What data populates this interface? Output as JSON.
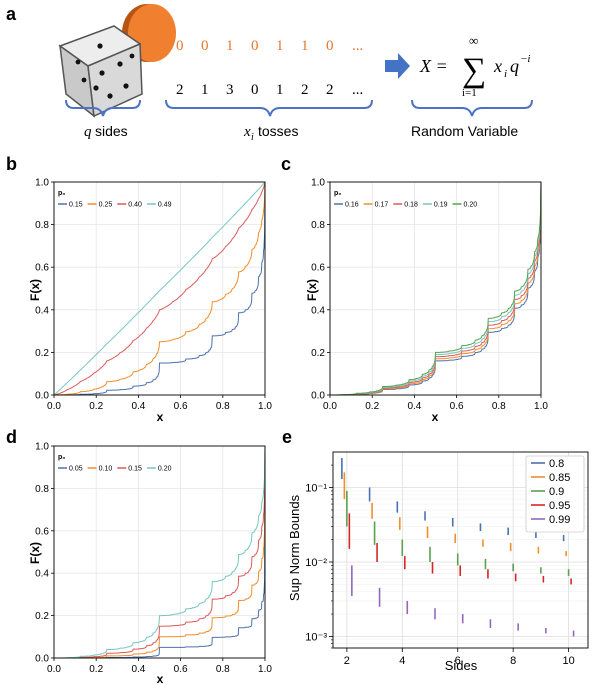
{
  "panel_a": {
    "letter": "a",
    "coin_sequence": [
      "0",
      "0",
      "1",
      "0",
      "1",
      "1",
      "0",
      "..."
    ],
    "toss_sequence": [
      "2",
      "1",
      "3",
      "0",
      "1",
      "2",
      "2",
      "..."
    ],
    "label_sides_var": "q",
    "label_sides_text": "sides",
    "label_tosses_var": "x",
    "label_tosses_sub": "i",
    "label_tosses_text": "tosses",
    "label_random": "Random Variable",
    "formula_lhs": "X =",
    "formula_sum_top": "∞",
    "formula_sum_bottom": "i=1",
    "formula_sigma": "∑",
    "formula_term": "x",
    "formula_term_sub": "i",
    "formula_q": "q",
    "formula_exp": "−i"
  },
  "chart_data": [
    {
      "id": "b",
      "letter": "b",
      "type": "line",
      "xlabel": "x",
      "ylabel": "F(x)",
      "xlim": [
        0,
        1
      ],
      "ylim": [
        0,
        1
      ],
      "xticks": [
        "0.0",
        "0.2",
        "0.4",
        "0.6",
        "0.8",
        "1.0"
      ],
      "yticks": [
        "0.0",
        "0.2",
        "0.4",
        "0.6",
        "0.8",
        "1.0"
      ],
      "legend_title": "p₀",
      "legend_location": "upper-left",
      "series": [
        {
          "name": "0.15",
          "color": "#4c72b0",
          "p0": 0.15
        },
        {
          "name": "0.25",
          "color": "#f28e2b",
          "p0": 0.25
        },
        {
          "name": "0.40",
          "color": "#dd5a5a",
          "p0": 0.4
        },
        {
          "name": "0.49",
          "color": "#76c7bf",
          "p0": 0.49
        }
      ]
    },
    {
      "id": "c",
      "letter": "c",
      "type": "line",
      "xlabel": "x",
      "ylabel": "F(x)",
      "xlim": [
        0,
        1
      ],
      "ylim": [
        0,
        1
      ],
      "xticks": [
        "0.0",
        "0.2",
        "0.4",
        "0.6",
        "0.8",
        "1.0"
      ],
      "yticks": [
        "0.0",
        "0.2",
        "0.4",
        "0.6",
        "0.8",
        "1.0"
      ],
      "legend_title": "p₀",
      "legend_location": "upper-left",
      "series": [
        {
          "name": "0.16",
          "color": "#4c72b0",
          "p0": 0.16
        },
        {
          "name": "0.17",
          "color": "#f28e2b",
          "p0": 0.17
        },
        {
          "name": "0.18",
          "color": "#dd5a5a",
          "p0": 0.18
        },
        {
          "name": "0.19",
          "color": "#76c7bf",
          "p0": 0.19
        },
        {
          "name": "0.20",
          "color": "#59a14f",
          "p0": 0.2
        }
      ]
    },
    {
      "id": "d",
      "letter": "d",
      "type": "line",
      "xlabel": "x",
      "ylabel": "F(x)",
      "xlim": [
        0,
        1
      ],
      "ylim": [
        0,
        1
      ],
      "xticks": [
        "0.0",
        "0.2",
        "0.4",
        "0.6",
        "0.8",
        "1.0"
      ],
      "yticks": [
        "0.0",
        "0.2",
        "0.4",
        "0.6",
        "0.8",
        "1.0"
      ],
      "legend_title": "p₀",
      "legend_location": "upper-left",
      "series": [
        {
          "name": "0.05",
          "color": "#4c72b0",
          "p0": 0.05
        },
        {
          "name": "0.10",
          "color": "#f28e2b",
          "p0": 0.1
        },
        {
          "name": "0.15",
          "color": "#dd5a5a",
          "p0": 0.15
        },
        {
          "name": "0.20",
          "color": "#76c7bf",
          "p0": 0.2
        }
      ]
    },
    {
      "id": "e",
      "letter": "e",
      "type": "range-bars",
      "xlabel": "Sides",
      "ylabel": "Sup Norm Bounds",
      "xlim": [
        1.5,
        10.7
      ],
      "ylog_range": [
        0.0007,
        0.3
      ],
      "xticks": [
        "2",
        "4",
        "6",
        "8",
        "10"
      ],
      "xtick_values": [
        2,
        4,
        6,
        8,
        10
      ],
      "yticks": [
        "10⁻³",
        "10⁻²",
        "10⁻¹"
      ],
      "ytick_values": [
        0.001,
        0.01,
        0.1
      ],
      "legend_location": "upper-right",
      "sides": [
        2,
        3,
        4,
        5,
        6,
        7,
        8,
        9,
        10
      ],
      "series": [
        {
          "name": "0.8",
          "color": "#4c72b0",
          "ranges": [
            [
              0.13,
              0.25
            ],
            [
              0.065,
              0.1
            ],
            [
              0.046,
              0.065
            ],
            [
              0.036,
              0.048
            ],
            [
              0.03,
              0.039
            ],
            [
              0.026,
              0.033
            ],
            [
              0.023,
              0.029
            ],
            [
              0.021,
              0.026
            ],
            [
              0.019,
              0.023
            ]
          ]
        },
        {
          "name": "0.85",
          "color": "#f28e2b",
          "ranges": [
            [
              0.07,
              0.16
            ],
            [
              0.038,
              0.062
            ],
            [
              0.027,
              0.04
            ],
            [
              0.021,
              0.03
            ],
            [
              0.018,
              0.024
            ],
            [
              0.016,
              0.02
            ],
            [
              0.014,
              0.018
            ],
            [
              0.013,
              0.016
            ],
            [
              0.012,
              0.014
            ]
          ]
        },
        {
          "name": "0.9",
          "color": "#59a14f",
          "ranges": [
            [
              0.03,
              0.09
            ],
            [
              0.017,
              0.035
            ],
            [
              0.012,
              0.02
            ],
            [
              0.01,
              0.016
            ],
            [
              0.009,
              0.013
            ],
            [
              0.008,
              0.011
            ],
            [
              0.0075,
              0.0095
            ],
            [
              0.007,
              0.0085
            ],
            [
              0.0065,
              0.008
            ]
          ]
        },
        {
          "name": "0.95",
          "color": "#d62728",
          "ranges": [
            [
              0.015,
              0.045
            ],
            [
              0.01,
              0.018
            ],
            [
              0.008,
              0.012
            ],
            [
              0.007,
              0.01
            ],
            [
              0.0065,
              0.009
            ],
            [
              0.006,
              0.008
            ],
            [
              0.0055,
              0.007
            ],
            [
              0.0053,
              0.0065
            ],
            [
              0.005,
              0.006
            ]
          ]
        },
        {
          "name": "0.99",
          "color": "#9467bd",
          "ranges": [
            [
              0.0035,
              0.009
            ],
            [
              0.0025,
              0.0045
            ],
            [
              0.002,
              0.003
            ],
            [
              0.0017,
              0.0024
            ],
            [
              0.0015,
              0.002
            ],
            [
              0.0013,
              0.0017
            ],
            [
              0.0012,
              0.0015
            ],
            [
              0.0011,
              0.0013
            ],
            [
              0.001,
              0.0012
            ]
          ]
        }
      ]
    }
  ]
}
